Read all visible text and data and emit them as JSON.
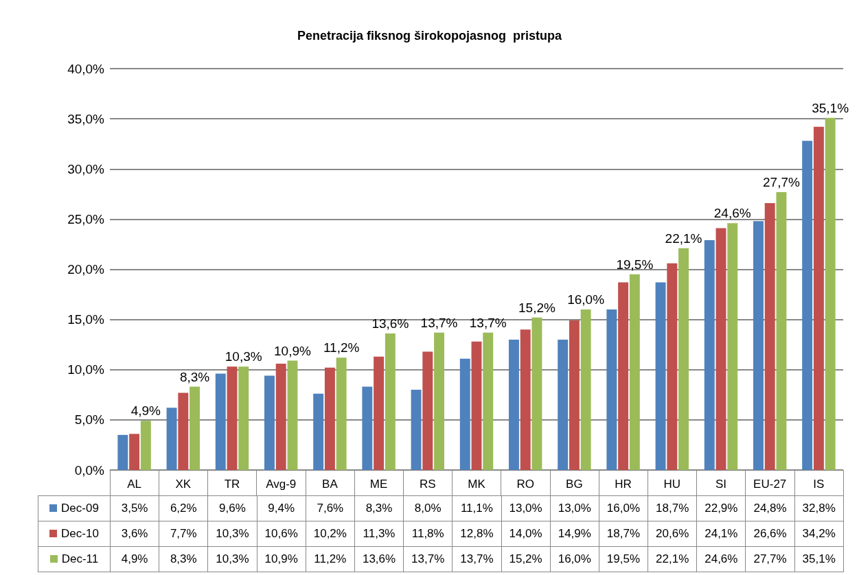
{
  "chart_data": {
    "type": "bar",
    "title": "Penetracija fiksnog širokopojasnog  pristupa",
    "categories": [
      "AL",
      "XK",
      "TR",
      "Avg-9",
      "BA",
      "ME",
      "RS",
      "MK",
      "RO",
      "BG",
      "HR",
      "HU",
      "SI",
      "EU-27",
      "IS"
    ],
    "series": [
      {
        "name": "Dec-09",
        "color": "#4f81bd",
        "values": [
          3.5,
          6.2,
          9.6,
          9.4,
          7.6,
          8.3,
          8.0,
          11.1,
          13.0,
          13.0,
          16.0,
          18.7,
          22.9,
          24.8,
          32.8
        ],
        "value_labels": [
          "3,5%",
          "6,2%",
          "9,6%",
          "9,4%",
          "7,6%",
          "8,3%",
          "8,0%",
          "11,1%",
          "13,0%",
          "13,0%",
          "16,0%",
          "18,7%",
          "22,9%",
          "24,8%",
          "32,8%"
        ]
      },
      {
        "name": "Dec-10",
        "color": "#c0504d",
        "values": [
          3.6,
          7.7,
          10.3,
          10.6,
          10.2,
          11.3,
          11.8,
          12.8,
          14.0,
          14.9,
          18.7,
          20.6,
          24.1,
          26.6,
          34.2
        ],
        "value_labels": [
          "3,6%",
          "7,7%",
          "10,3%",
          "10,6%",
          "10,2%",
          "11,3%",
          "11,8%",
          "12,8%",
          "14,0%",
          "14,9%",
          "18,7%",
          "20,6%",
          "24,1%",
          "26,6%",
          "34,2%"
        ]
      },
      {
        "name": "Dec-11",
        "color": "#9bbb59",
        "values": [
          4.9,
          8.3,
          10.3,
          10.9,
          11.2,
          13.6,
          13.7,
          13.7,
          15.2,
          16.0,
          19.5,
          22.1,
          24.6,
          27.7,
          35.1
        ],
        "value_labels": [
          "4,9%",
          "8,3%",
          "10,3%",
          "10,9%",
          "11,2%",
          "13,6%",
          "13,7%",
          "13,7%",
          "15,2%",
          "16,0%",
          "19,5%",
          "22,1%",
          "24,6%",
          "27,7%",
          "35,1%"
        ]
      }
    ],
    "ylim": [
      0,
      40
    ],
    "yticks": [
      {
        "value": 0,
        "label": "0,0%"
      },
      {
        "value": 5,
        "label": "5,0%"
      },
      {
        "value": 10,
        "label": "10,0%"
      },
      {
        "value": 15,
        "label": "15,0%"
      },
      {
        "value": 20,
        "label": "20,0%"
      },
      {
        "value": 25,
        "label": "25,0%"
      },
      {
        "value": 30,
        "label": "30,0%"
      },
      {
        "value": 35,
        "label": "35,0%"
      },
      {
        "value": 40,
        "label": "40,0%"
      }
    ],
    "grid": "y",
    "legend": "bottom"
  }
}
